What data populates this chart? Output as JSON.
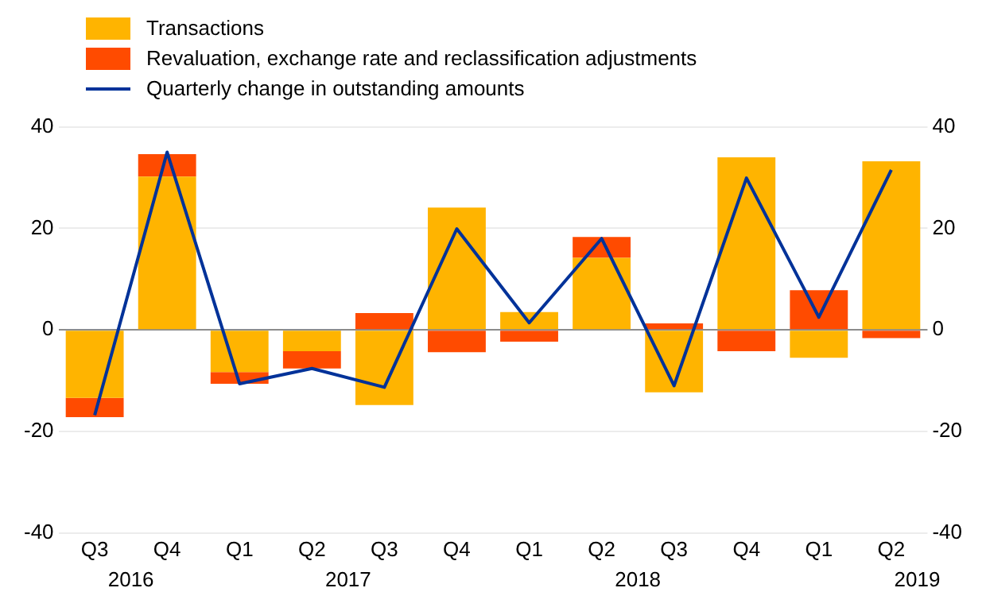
{
  "chart_data": {
    "type": "bar",
    "stacked": true,
    "categories": [
      "Q3",
      "Q4",
      "Q1",
      "Q2",
      "Q3",
      "Q4",
      "Q1",
      "Q2",
      "Q3",
      "Q4",
      "Q1",
      "Q2"
    ],
    "series": [
      {
        "name": "Transactions",
        "color": "#ffb400",
        "values": [
          -13.4,
          30.2,
          -8.3,
          -4.2,
          -14.8,
          24.1,
          3.5,
          14.2,
          -12.3,
          34,
          -5.5,
          33.2
        ]
      },
      {
        "name": "Revaluation, exchange rate and reclassification adjustments",
        "color": "#ff4b00",
        "values": [
          -3.8,
          4.4,
          -2.3,
          -3.4,
          3.3,
          -4.4,
          -2.3,
          4.1,
          1.3,
          -4.2,
          7.8,
          -1.6
        ]
      },
      {
        "name": "Quarterly change in outstanding amounts",
        "type": "line",
        "color": "#003299",
        "values": [
          -16.8,
          35,
          -10.6,
          -7.6,
          -11.3,
          19.9,
          1.4,
          18,
          -11,
          29.9,
          2.5,
          31.5
        ]
      }
    ],
    "ylim": [
      -40,
      40
    ],
    "yticks": [
      -40,
      -20,
      0,
      20,
      40
    ],
    "y2lim": [
      -40,
      40
    ],
    "y2ticks": [
      -40,
      -20,
      0,
      20,
      40
    ],
    "annotations": [
      "2016",
      "2017",
      "2018",
      "2019"
    ],
    "grid": "y",
    "legend": "top left",
    "marker": "none",
    "line_style": "solid"
  }
}
